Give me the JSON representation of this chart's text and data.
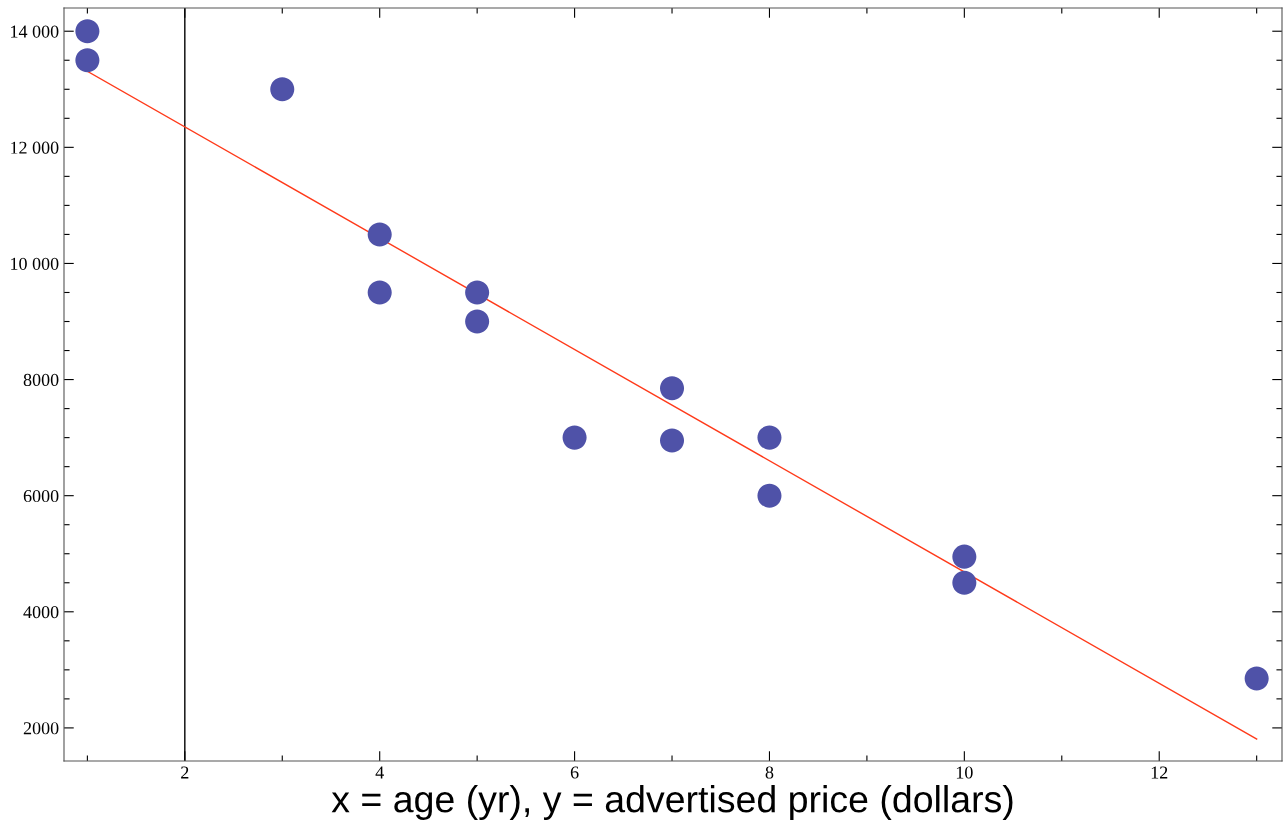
{
  "chart_data": {
    "type": "scatter",
    "xlabel": "x = age (yr), y = advertised price (dollars)",
    "series": [
      {
        "color": "#4f52a8",
        "marker": "circle",
        "x": [
          1,
          1,
          3,
          4,
          4,
          5,
          5,
          6,
          7,
          7,
          8,
          8,
          10,
          10,
          13
        ],
        "values": [
          14000,
          13500,
          13000,
          10500,
          9500,
          9500,
          9000,
          7000,
          7850,
          6950,
          7000,
          6000,
          4950,
          4500,
          2850
        ]
      },
      {
        "type": "line",
        "color": "#ff3a1a",
        "x": [
          1,
          13
        ],
        "values": [
          13310,
          1810
        ]
      }
    ],
    "xlim": [
      0.76,
      13.26
    ],
    "ylim": [
      1430,
      14400
    ],
    "xticks": [
      {
        "value": 1,
        "label": null
      },
      2,
      {
        "value": 3,
        "label": null
      },
      4,
      {
        "value": 5,
        "label": null
      },
      6,
      {
        "value": 7,
        "label": null
      },
      8,
      {
        "value": 9,
        "label": null
      },
      10,
      {
        "value": 11,
        "label": null
      },
      12,
      {
        "value": 13,
        "label": null
      }
    ],
    "yticks": [
      2000,
      {
        "value": 2500,
        "label": null
      },
      {
        "value": 3000,
        "label": null
      },
      {
        "value": 3500,
        "label": null
      },
      4000,
      {
        "value": 4500,
        "label": null
      },
      {
        "value": 5000,
        "label": null
      },
      {
        "value": 5500,
        "label": null
      },
      6000,
      {
        "value": 6500,
        "label": null
      },
      {
        "value": 7000,
        "label": null
      },
      {
        "value": 7500,
        "label": null
      },
      8000,
      {
        "value": 8500,
        "label": null
      },
      {
        "value": 9000,
        "label": null
      },
      {
        "value": 9500,
        "label": null
      },
      {
        "value": 10000,
        "label": "10 000"
      },
      {
        "value": 10500,
        "label": null
      },
      {
        "value": 11000,
        "label": null
      },
      {
        "value": 11500,
        "label": null
      },
      {
        "value": 12000,
        "label": "12 000"
      },
      {
        "value": 12500,
        "label": null
      },
      {
        "value": 13000,
        "label": null
      },
      {
        "value": 13500,
        "label": null
      },
      {
        "value": 14000,
        "label": "14 000"
      }
    ],
    "ref_lines": [
      {
        "axis": "x",
        "value": 2,
        "color": "#000000"
      }
    ],
    "grid": false,
    "legend": false
  }
}
